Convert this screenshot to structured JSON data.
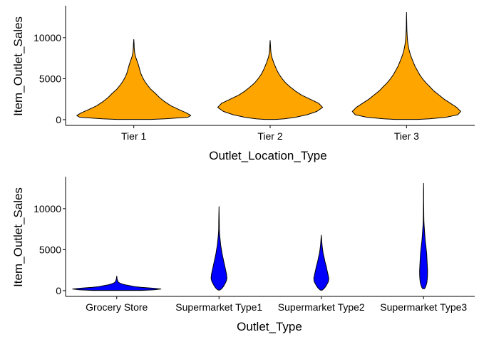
{
  "chart_data": [
    {
      "type": "violin",
      "title": "",
      "xlabel": "Outlet_Location_Type",
      "ylabel": "Item_Outlet_Sales",
      "ylim": [
        -700,
        13900
      ],
      "yticks": [
        0,
        5000,
        10000
      ],
      "ytick_labels": [
        "0",
        "5000",
        "10000"
      ],
      "fill_color": "#FFA500",
      "outline_color": "#000000",
      "grid": false,
      "categories": [
        "Tier 1",
        "Tier 2",
        "Tier 3"
      ],
      "series": [
        {
          "category": "Tier 1",
          "min": 33,
          "max": 9780,
          "density_profile": [
            [
              33,
              0.3
            ],
            [
              100,
              0.55
            ],
            [
              300,
              0.95
            ],
            [
              500,
              1.0
            ],
            [
              800,
              0.93
            ],
            [
              1200,
              0.8
            ],
            [
              1700,
              0.65
            ],
            [
              2200,
              0.54
            ],
            [
              2700,
              0.45
            ],
            [
              3200,
              0.38
            ],
            [
              3700,
              0.3
            ],
            [
              4200,
              0.24
            ],
            [
              4700,
              0.19
            ],
            [
              5200,
              0.15
            ],
            [
              5700,
              0.12
            ],
            [
              6200,
              0.1
            ],
            [
              6700,
              0.08
            ],
            [
              7200,
              0.055
            ],
            [
              7700,
              0.03
            ],
            [
              8200,
              0.015
            ],
            [
              8700,
              0.008
            ],
            [
              9300,
              0.005
            ],
            [
              9780,
              0.0
            ]
          ]
        },
        {
          "category": "Tier 2",
          "min": 33,
          "max": 9665,
          "density_profile": [
            [
              33,
              0.1
            ],
            [
              100,
              0.25
            ],
            [
              300,
              0.45
            ],
            [
              600,
              0.65
            ],
            [
              1000,
              0.82
            ],
            [
              1500,
              0.92
            ],
            [
              2000,
              0.85
            ],
            [
              2500,
              0.7
            ],
            [
              3000,
              0.55
            ],
            [
              3500,
              0.44
            ],
            [
              4000,
              0.35
            ],
            [
              4500,
              0.27
            ],
            [
              5000,
              0.21
            ],
            [
              5500,
              0.16
            ],
            [
              6000,
              0.12
            ],
            [
              6500,
              0.09
            ],
            [
              7000,
              0.06
            ],
            [
              7500,
              0.035
            ],
            [
              8000,
              0.018
            ],
            [
              8500,
              0.01
            ],
            [
              9000,
              0.006
            ],
            [
              9665,
              0.0
            ]
          ]
        },
        {
          "category": "Tier 3",
          "min": 33,
          "max": 13087,
          "density_profile": [
            [
              33,
              0.2
            ],
            [
              100,
              0.4
            ],
            [
              300,
              0.7
            ],
            [
              600,
              0.9
            ],
            [
              1000,
              0.95
            ],
            [
              1500,
              0.88
            ],
            [
              2000,
              0.77
            ],
            [
              2500,
              0.66
            ],
            [
              3000,
              0.57
            ],
            [
              3500,
              0.48
            ],
            [
              4000,
              0.41
            ],
            [
              4500,
              0.34
            ],
            [
              5000,
              0.28
            ],
            [
              5500,
              0.23
            ],
            [
              6000,
              0.19
            ],
            [
              6500,
              0.15
            ],
            [
              7000,
              0.12
            ],
            [
              7500,
              0.09
            ],
            [
              8000,
              0.065
            ],
            [
              8500,
              0.045
            ],
            [
              9000,
              0.03
            ],
            [
              9500,
              0.02
            ],
            [
              10000,
              0.013
            ],
            [
              10500,
              0.009
            ],
            [
              11000,
              0.006
            ],
            [
              11500,
              0.004
            ],
            [
              12000,
              0.003
            ],
            [
              13087,
              0.0
            ]
          ]
        }
      ]
    },
    {
      "type": "violin",
      "title": "",
      "xlabel": "Outlet_Type",
      "ylabel": "Item_Outlet_Sales",
      "ylim": [
        -700,
        13900
      ],
      "yticks": [
        0,
        5000,
        10000
      ],
      "ytick_labels": [
        "0",
        "5000",
        "10000"
      ],
      "fill_color": "#0000FF",
      "outline_color": "#000000",
      "grid": false,
      "categories": [
        "Grocery Store",
        "Supermarket Type1",
        "Supermarket Type2",
        "Supermarket Type3"
      ],
      "series": [
        {
          "category": "Grocery Store",
          "min": 33,
          "max": 1775,
          "density_profile": [
            [
              33,
              0.55
            ],
            [
              100,
              0.85
            ],
            [
              200,
              1.0
            ],
            [
              300,
              0.82
            ],
            [
              400,
              0.55
            ],
            [
              500,
              0.4
            ],
            [
              600,
              0.3
            ],
            [
              700,
              0.2
            ],
            [
              800,
              0.13
            ],
            [
              900,
              0.08
            ],
            [
              1000,
              0.045
            ],
            [
              1100,
              0.03
            ],
            [
              1300,
              0.015
            ],
            [
              1500,
              0.008
            ],
            [
              1775,
              0.0
            ]
          ]
        },
        {
          "category": "Supermarket Type1",
          "min": 73,
          "max": 10256,
          "density_profile": [
            [
              73,
              0.02
            ],
            [
              150,
              0.04
            ],
            [
              300,
              0.07
            ],
            [
              500,
              0.1
            ],
            [
              800,
              0.13
            ],
            [
              1100,
              0.16
            ],
            [
              1500,
              0.18
            ],
            [
              2000,
              0.17
            ],
            [
              2500,
              0.15
            ],
            [
              3000,
              0.13
            ],
            [
              3500,
              0.11
            ],
            [
              4000,
              0.09
            ],
            [
              4500,
              0.07
            ],
            [
              5000,
              0.055
            ],
            [
              5500,
              0.04
            ],
            [
              6000,
              0.03
            ],
            [
              6500,
              0.02
            ],
            [
              7000,
              0.012
            ],
            [
              7500,
              0.008
            ],
            [
              8500,
              0.005
            ],
            [
              9500,
              0.003
            ],
            [
              10256,
              0.0
            ]
          ]
        },
        {
          "category": "Supermarket Type2",
          "min": 69,
          "max": 6768,
          "density_profile": [
            [
              69,
              0.02
            ],
            [
              150,
              0.04
            ],
            [
              300,
              0.07
            ],
            [
              500,
              0.1
            ],
            [
              800,
              0.13
            ],
            [
              1100,
              0.16
            ],
            [
              1500,
              0.17
            ],
            [
              2000,
              0.15
            ],
            [
              2500,
              0.13
            ],
            [
              3000,
              0.11
            ],
            [
              3500,
              0.085
            ],
            [
              4000,
              0.065
            ],
            [
              4500,
              0.045
            ],
            [
              5000,
              0.03
            ],
            [
              5500,
              0.018
            ],
            [
              6000,
              0.01
            ],
            [
              6400,
              0.006
            ],
            [
              6768,
              0.0
            ]
          ]
        },
        {
          "category": "Supermarket Type3",
          "min": 241,
          "max": 13087,
          "density_profile": [
            [
              241,
              0.02
            ],
            [
              400,
              0.04
            ],
            [
              700,
              0.06
            ],
            [
              1000,
              0.075
            ],
            [
              1500,
              0.085
            ],
            [
              2000,
              0.09
            ],
            [
              2500,
              0.09
            ],
            [
              3000,
              0.085
            ],
            [
              3500,
              0.08
            ],
            [
              4000,
              0.075
            ],
            [
              4500,
              0.07
            ],
            [
              5000,
              0.06
            ],
            [
              5500,
              0.05
            ],
            [
              6000,
              0.04
            ],
            [
              6500,
              0.032
            ],
            [
              7000,
              0.025
            ],
            [
              7500,
              0.018
            ],
            [
              8000,
              0.012
            ],
            [
              8500,
              0.008
            ],
            [
              9000,
              0.006
            ],
            [
              10000,
              0.004
            ],
            [
              11000,
              0.003
            ],
            [
              12000,
              0.002
            ],
            [
              13087,
              0.0
            ]
          ]
        }
      ]
    }
  ]
}
